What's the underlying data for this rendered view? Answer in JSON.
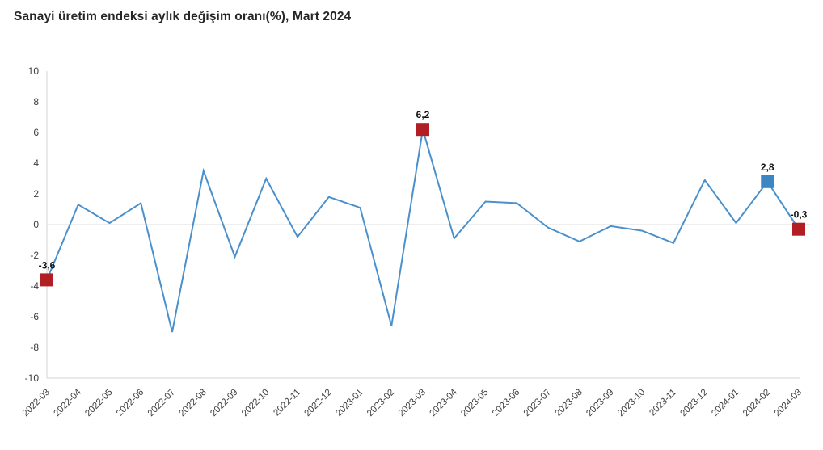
{
  "page": {
    "title": "Sanayi üretim endeksi aylık değişim oranı(%), Mart 2024"
  },
  "colors": {
    "line": "#4a90cc",
    "marker_red": "#b11f24",
    "marker_blue": "#3d86c6",
    "zero_gridline": "#dedede",
    "axis_line": "#d3d3d3",
    "tick_text": "#404040",
    "title_text": "#262626",
    "data_label_text": "#111111",
    "background": "#ffffff"
  },
  "chart_data": {
    "type": "line",
    "title": "Sanayi üretim endeksi aylık değişim oranı(%), Mart 2024",
    "xlabel": "",
    "ylabel": "",
    "ylim": [
      -10,
      10
    ],
    "ytick_step": 2,
    "yticks": [
      "10",
      "8",
      "6",
      "4",
      "2",
      "0",
      "-2",
      "-4",
      "-6",
      "-8",
      "-10"
    ],
    "grid": "zero-line-only",
    "legend_position": "none",
    "decimal_style": "comma",
    "x": [
      "2022-03",
      "2022-04",
      "2022-05",
      "2022-06",
      "2022-07",
      "2022-08",
      "2022-09",
      "2022-10",
      "2022-11",
      "2022-12",
      "2023-01",
      "2023-02",
      "2023-03",
      "2023-04",
      "2023-05",
      "2023-06",
      "2023-07",
      "2023-08",
      "2023-09",
      "2023-10",
      "2023-11",
      "2023-12",
      "2024-01",
      "2024-02",
      "2024-03"
    ],
    "values": [
      -3.6,
      1.3,
      0.1,
      1.4,
      -7.0,
      3.5,
      -2.1,
      3.0,
      -0.8,
      1.8,
      1.1,
      -6.6,
      6.2,
      -0.9,
      1.5,
      1.4,
      -0.2,
      -1.1,
      -0.1,
      -0.4,
      -1.2,
      2.9,
      0.1,
      2.8,
      -0.3
    ],
    "annotations": [
      {
        "x": "2022-03",
        "index": 0,
        "value": -3.6,
        "label": "-3,6",
        "marker": "red-square"
      },
      {
        "x": "2023-03",
        "index": 12,
        "value": 6.2,
        "label": "6,2",
        "marker": "red-square"
      },
      {
        "x": "2024-02",
        "index": 23,
        "value": 2.8,
        "label": "2,8",
        "marker": "blue-square"
      },
      {
        "x": "2024-03",
        "index": 24,
        "value": -0.3,
        "label": "-0,3",
        "marker": "red-square"
      }
    ]
  }
}
